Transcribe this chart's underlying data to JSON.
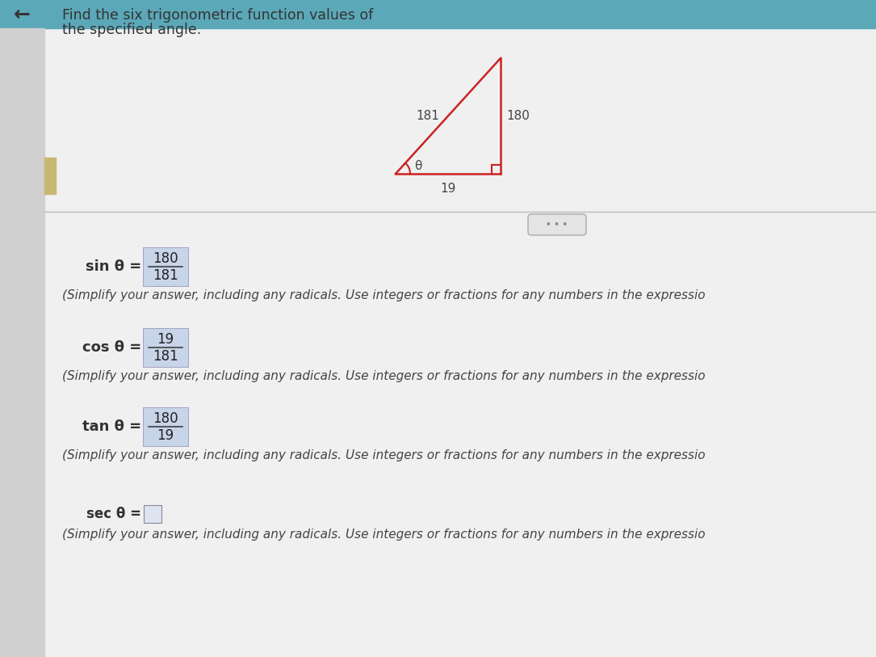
{
  "bg_color": "#e8e8e8",
  "content_bg": "#ececec",
  "top_bar_color": "#5ba8b8",
  "left_sidebar_color": "#d0d0d0",
  "title_line1": "Find the six trigonometric function values of",
  "title_line2": "the specified angle.",
  "title_fontsize": 12.5,
  "title_color": "#333333",
  "triangle": {
    "hyp_label": "181",
    "opp_label": "180",
    "adj_label": "19",
    "angle_label": "θ",
    "triangle_color": "#cc2222",
    "label_color": "#444444",
    "right_angle_color": "#cc2222"
  },
  "divider_line_color": "#bbbbbb",
  "ellipsis_color": "#888888",
  "equations": [
    {
      "label": "sin θ =",
      "numerator": "180",
      "denominator": "181",
      "box_color": "#c8d4e8"
    },
    {
      "label": "cos θ =",
      "numerator": "19",
      "denominator": "181",
      "box_color": "#c8d4e8"
    },
    {
      "label": "tan θ =",
      "numerator": "180",
      "denominator": "19",
      "box_color": "#c8d4e8"
    }
  ],
  "sec_label": "sec θ =",
  "sec_box_color": "#c8d4e8",
  "simplify_text": "(Simplify your answer, including any radicals. Use integers or fractions for any numbers in the expressio",
  "simplify_fontsize": 11,
  "simplify_color": "#444444",
  "arrow_color": "#333333",
  "top_bar_height": 35,
  "left_bar_width": 55
}
